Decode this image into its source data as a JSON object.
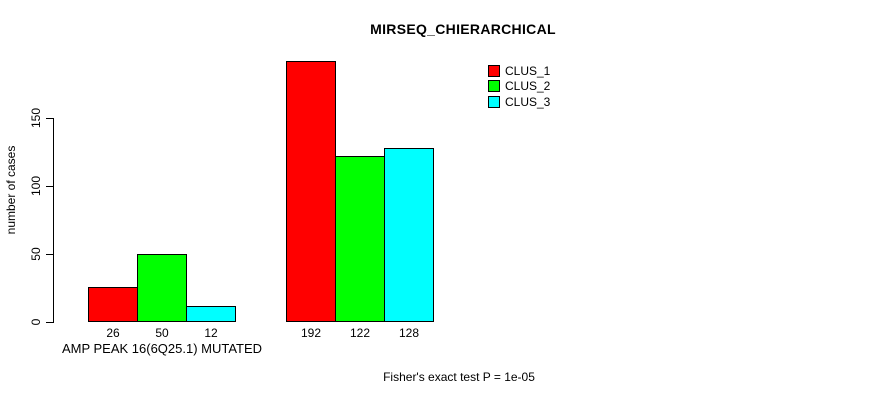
{
  "title": "MIRSEQ_CHIERARCHICAL",
  "chart_data": {
    "type": "bar",
    "title": "MIRSEQ_CHIERARCHICAL",
    "ylabel": "number of cases",
    "xlabel": "",
    "categories": [
      "AMP PEAK 16(6Q25.1) MUTATED",
      ""
    ],
    "series": [
      {
        "name": "CLUS_1",
        "color": "#ff0000",
        "values": [
          26,
          192
        ]
      },
      {
        "name": "CLUS_2",
        "color": "#00ff00",
        "values": [
          50,
          122
        ]
      },
      {
        "name": "CLUS_3",
        "color": "#00ffff",
        "values": [
          12,
          128
        ]
      }
    ],
    "yticks": [
      0,
      50,
      100,
      150
    ],
    "ylim": [
      0,
      150
    ],
    "grid": false,
    "legend_position": "top-right",
    "bar_value_labels": true,
    "annotation": "Fisher's exact test P = 1e-05"
  }
}
